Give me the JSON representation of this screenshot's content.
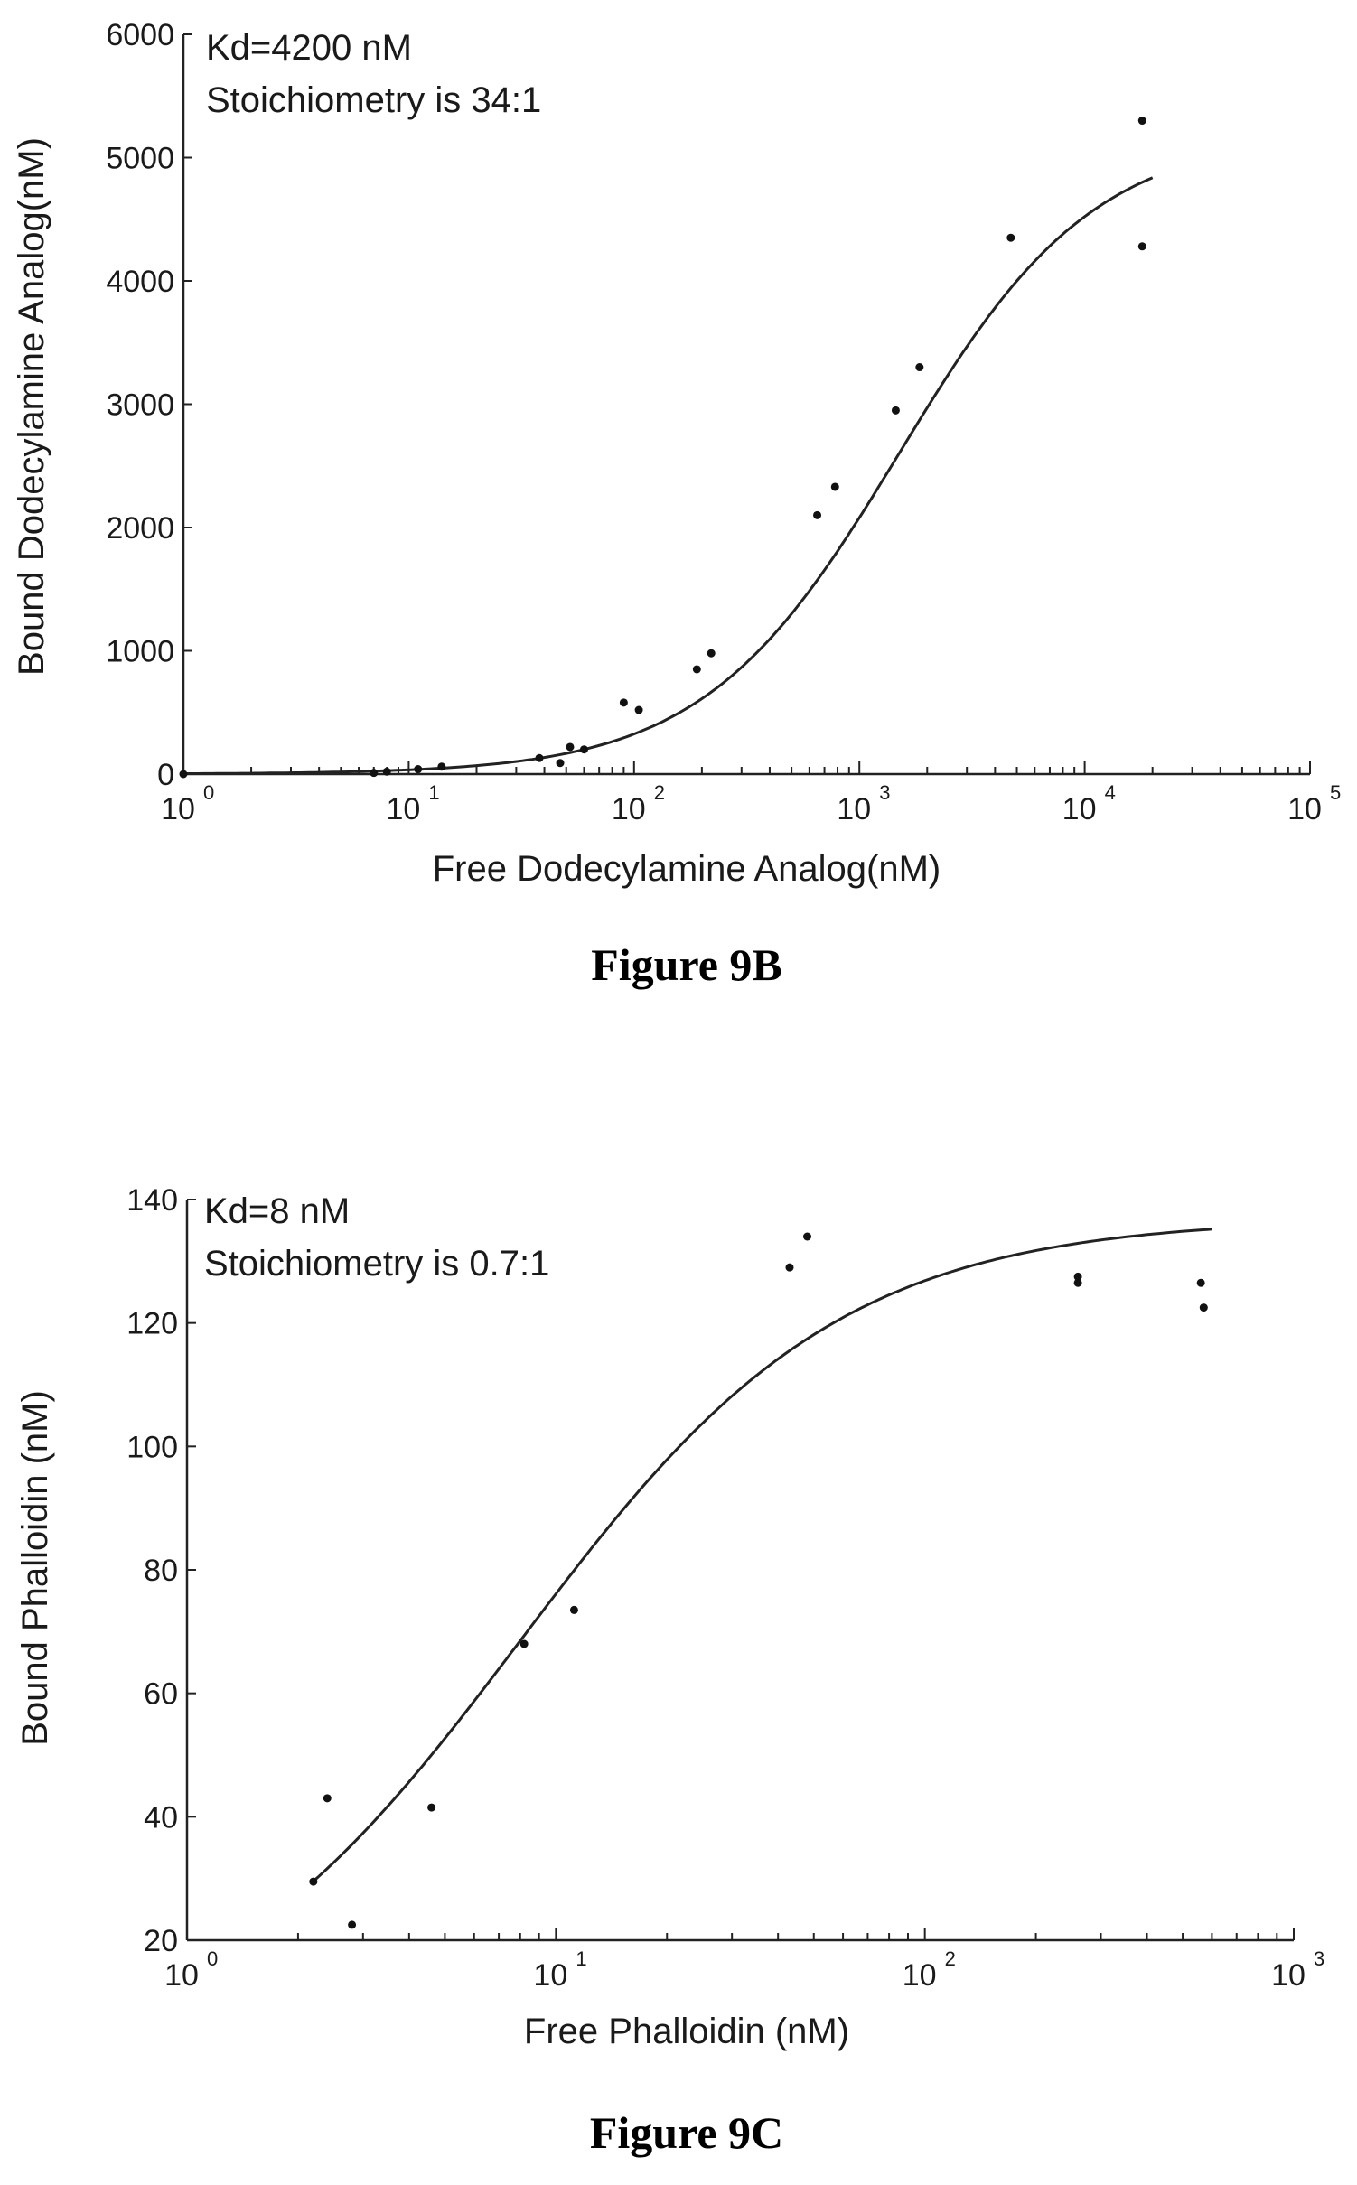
{
  "chart_data": [
    {
      "type": "scatter",
      "caption": "Figure 9B",
      "xlabel": "Free Dodecylamine Analog(nM)",
      "ylabel": "Bound Dodecylamine Analog(nM)",
      "xscale": "log",
      "xlim": [
        1,
        100000
      ],
      "ylim": [
        0,
        6000
      ],
      "yticks": [
        "0",
        "1000",
        "2000",
        "3000",
        "4000",
        "5000",
        "6000"
      ],
      "xticks": [
        {
          "base": "10",
          "exp": "0"
        },
        {
          "base": "10",
          "exp": "1"
        },
        {
          "base": "10",
          "exp": "2"
        },
        {
          "base": "10",
          "exp": "3"
        },
        {
          "base": "10",
          "exp": "4"
        },
        {
          "base": "10",
          "exp": "5"
        }
      ],
      "annotations": [
        "Kd=4200 nM",
        "Stoichiometry is 34:1"
      ],
      "series": [
        {
          "type": "scatter",
          "points": [
            [
              1,
              0
            ],
            [
              7,
              10
            ],
            [
              8,
              20
            ],
            [
              11,
              40
            ],
            [
              14,
              60
            ],
            [
              38,
              130
            ],
            [
              47,
              90
            ],
            [
              52,
              220
            ],
            [
              60,
              200
            ],
            [
              90,
              580
            ],
            [
              105,
              520
            ],
            [
              190,
              850
            ],
            [
              220,
              980
            ],
            [
              650,
              2100
            ],
            [
              780,
              2330
            ],
            [
              1450,
              2950
            ],
            [
              1850,
              3300
            ],
            [
              4700,
              4350
            ],
            [
              18000,
              5300
            ],
            [
              18000,
              4280
            ]
          ]
        },
        {
          "type": "line",
          "fit": "binding",
          "bmax": 5200,
          "kd": 1500,
          "xrange": [
            1,
            20000
          ]
        }
      ]
    },
    {
      "type": "scatter",
      "caption": "Figure 9C",
      "xlabel": "Free Phalloidin (nM)",
      "ylabel": "Bound Phalloidin (nM)",
      "xscale": "log",
      "xlim": [
        1,
        1000
      ],
      "ylim": [
        20,
        140
      ],
      "yticks": [
        "20",
        "40",
        "60",
        "80",
        "100",
        "120",
        "140"
      ],
      "xticks": [
        {
          "base": "10",
          "exp": "0"
        },
        {
          "base": "10",
          "exp": "1"
        },
        {
          "base": "10",
          "exp": "2"
        },
        {
          "base": "10",
          "exp": "3"
        }
      ],
      "annotations": [
        "Kd=8 nM",
        "Stoichiometry is 0.7:1"
      ],
      "series": [
        {
          "type": "scatter",
          "points": [
            [
              2.2,
              29.5
            ],
            [
              2.4,
              43
            ],
            [
              2.8,
              22.5
            ],
            [
              4.6,
              41.5
            ],
            [
              8.2,
              68
            ],
            [
              11.2,
              73.5
            ],
            [
              43,
              129
            ],
            [
              48,
              134
            ],
            [
              260,
              126.5
            ],
            [
              260,
              127.5
            ],
            [
              560,
              126.5
            ],
            [
              570,
              122.5
            ]
          ]
        },
        {
          "type": "line",
          "fit": "binding",
          "bmax": 137,
          "kd": 8,
          "xrange": [
            2.2,
            600
          ]
        }
      ]
    }
  ]
}
